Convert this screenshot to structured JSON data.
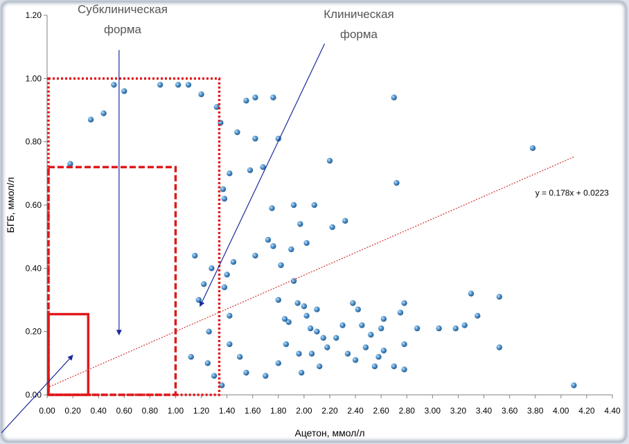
{
  "chart_data": {
    "type": "scatter",
    "title": "",
    "xlabel": "Ацетон, ммол/л",
    "ylabel": "БГБ, ммол/л",
    "xlim": [
      0,
      4.4
    ],
    "ylim": [
      0,
      1.2
    ],
    "x_ticks": [
      "0.00",
      "0.20",
      "0.40",
      "0.60",
      "0.80",
      "1.00",
      "1.20",
      "1.40",
      "1.60",
      "1.80",
      "2.00",
      "2.20",
      "2.40",
      "2.60",
      "2.80",
      "3.00",
      "3.20",
      "3.40",
      "3.60",
      "3.80",
      "4.00",
      "4.20",
      "4.40"
    ],
    "y_ticks": [
      "0.00",
      "0.20",
      "0.40",
      "0.60",
      "0.80",
      "1.00",
      "1.20"
    ],
    "grid": false,
    "point_color": "#4a8fc9",
    "trendline": {
      "equation": "y = 0.178x + 0.0223",
      "slope": 0.178,
      "intercept": 0.0223,
      "x_range": [
        0,
        4.1
      ],
      "color": "#d84a4a"
    },
    "regions": [
      {
        "x": [
          0,
          0.32
        ],
        "y": [
          0,
          0.255
        ],
        "style": "solid",
        "color": "#e0181b"
      },
      {
        "x": [
          0,
          1.0
        ],
        "y": [
          0,
          0.72
        ],
        "style": "dashed",
        "color": "#e0181b"
      },
      {
        "x": [
          0,
          1.34
        ],
        "y": [
          0,
          1.0
        ],
        "style": "dotted",
        "color": "#e0181b"
      }
    ],
    "annotations": [
      {
        "lines": [
          "Субклиническая",
          "форма"
        ],
        "arrow_from": [
          0.56,
          1.09
        ],
        "arrow_to": [
          0.56,
          0.19
        ]
      },
      {
        "lines": [
          "Клиническая",
          "форма"
        ],
        "arrow_from": [
          2.16,
          1.11
        ],
        "arrow_to": [
          1.19,
          0.28
        ]
      }
    ],
    "extra_arrow": {
      "from": [
        -0.4,
        -0.14
      ],
      "to": [
        0.2,
        0.125
      ]
    },
    "series": [
      {
        "points": [
          [
            2.7,
            0.94
          ],
          [
            3.78,
            0.78
          ],
          [
            2.72,
            0.67
          ],
          [
            4.1,
            0.03
          ],
          [
            3.52,
            0.31
          ],
          [
            3.52,
            0.15
          ],
          [
            3.3,
            0.32
          ],
          [
            3.35,
            0.25
          ],
          [
            3.25,
            0.22
          ],
          [
            3.18,
            0.21
          ],
          [
            3.05,
            0.21
          ],
          [
            2.88,
            0.21
          ],
          [
            2.78,
            0.29
          ],
          [
            2.75,
            0.26
          ],
          [
            2.78,
            0.16
          ],
          [
            2.62,
            0.14
          ],
          [
            2.7,
            0.09
          ],
          [
            2.78,
            0.08
          ],
          [
            2.58,
            0.12
          ],
          [
            2.55,
            0.09
          ],
          [
            2.48,
            0.15
          ],
          [
            2.45,
            0.22
          ],
          [
            2.42,
            0.27
          ],
          [
            2.38,
            0.29
          ],
          [
            2.32,
            0.55
          ],
          [
            2.2,
            0.74
          ],
          [
            2.02,
            0.48
          ],
          [
            1.92,
            0.6
          ],
          [
            1.97,
            0.54
          ],
          [
            2.22,
            0.53
          ],
          [
            1.9,
            0.46
          ],
          [
            2.08,
            0.6
          ],
          [
            2.0,
            0.28
          ],
          [
            1.92,
            0.36
          ],
          [
            1.88,
            0.23
          ],
          [
            1.98,
            0.07
          ],
          [
            1.8,
            0.81
          ],
          [
            1.76,
            0.94
          ],
          [
            1.62,
            0.94
          ],
          [
            1.55,
            0.93
          ],
          [
            1.68,
            0.72
          ],
          [
            1.62,
            0.81
          ],
          [
            1.58,
            0.71
          ],
          [
            1.82,
            0.41
          ],
          [
            1.62,
            0.44
          ],
          [
            1.72,
            0.49
          ],
          [
            1.75,
            0.59
          ],
          [
            1.76,
            0.47
          ],
          [
            1.8,
            0.3
          ],
          [
            1.85,
            0.24
          ],
          [
            1.86,
            0.16
          ],
          [
            1.8,
            0.1
          ],
          [
            1.7,
            0.06
          ],
          [
            1.55,
            0.07
          ],
          [
            1.5,
            0.12
          ],
          [
            1.42,
            0.16
          ],
          [
            1.36,
            0.03
          ],
          [
            1.42,
            0.25
          ],
          [
            1.38,
            0.34
          ],
          [
            1.4,
            0.38
          ],
          [
            1.45,
            0.42
          ],
          [
            1.38,
            0.62
          ],
          [
            1.42,
            0.7
          ],
          [
            1.48,
            0.83
          ],
          [
            1.35,
            0.86
          ],
          [
            1.32,
            0.91
          ],
          [
            1.37,
            0.65
          ],
          [
            2.1,
            0.2
          ],
          [
            2.05,
            0.21
          ],
          [
            2.15,
            0.18
          ],
          [
            2.25,
            0.18
          ],
          [
            2.3,
            0.22
          ],
          [
            2.34,
            0.13
          ],
          [
            2.18,
            0.15
          ],
          [
            2.12,
            0.09
          ],
          [
            2.06,
            0.13
          ],
          [
            1.96,
            0.13
          ],
          [
            2.6,
            0.21
          ],
          [
            2.52,
            0.19
          ],
          [
            2.62,
            0.24
          ],
          [
            2.4,
            0.11
          ],
          [
            2.02,
            0.25
          ],
          [
            1.95,
            0.29
          ],
          [
            2.1,
            0.27
          ],
          [
            1.1,
            0.98
          ],
          [
            1.02,
            0.98
          ],
          [
            0.88,
            0.98
          ],
          [
            0.52,
            0.98
          ],
          [
            0.6,
            0.96
          ],
          [
            1.2,
            0.95
          ],
          [
            0.34,
            0.87
          ],
          [
            0.44,
            0.89
          ],
          [
            0.18,
            0.73
          ],
          [
            1.12,
            0.12
          ],
          [
            1.25,
            0.1
          ],
          [
            1.3,
            0.06
          ],
          [
            1.28,
            0.4
          ],
          [
            1.22,
            0.35
          ],
          [
            1.18,
            0.3
          ],
          [
            1.26,
            0.2
          ],
          [
            1.15,
            0.44
          ]
        ]
      }
    ]
  }
}
